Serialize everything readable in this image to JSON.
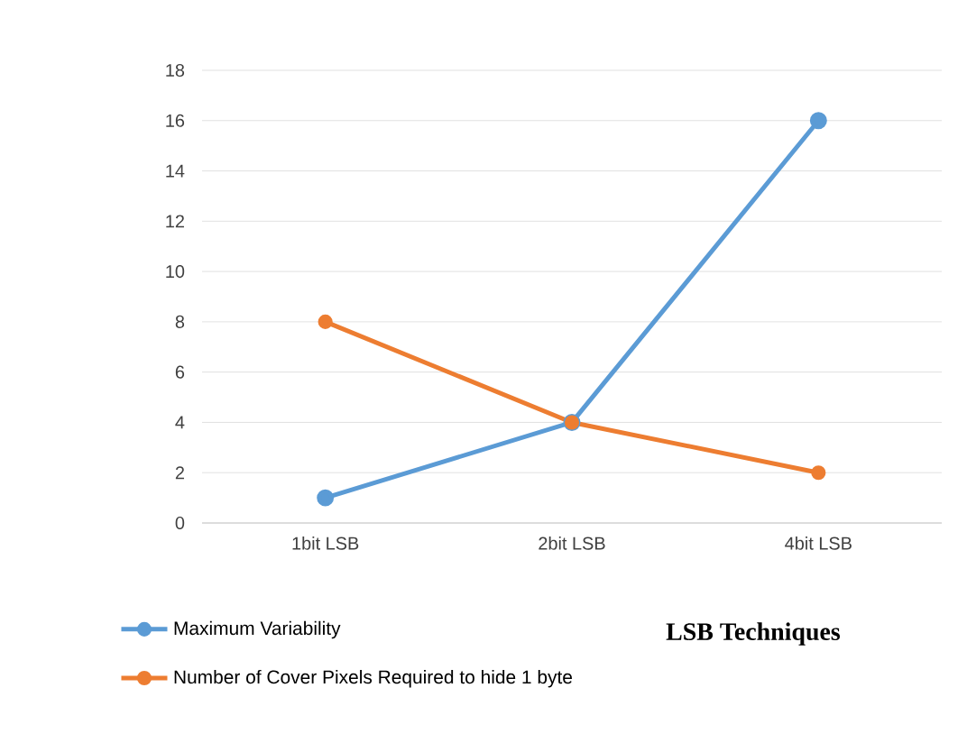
{
  "chart_data": {
    "type": "line",
    "xlabel": "LSB Techniques",
    "categories": [
      "1bit LSB",
      "2bit LSB",
      "4bit LSB"
    ],
    "series": [
      {
        "name": "Maximum Variability",
        "color": "#5b9bd5",
        "values": [
          1,
          4,
          16
        ]
      },
      {
        "name": "Number of Cover Pixels Required to hide 1 byte",
        "color": "#ed7d31",
        "values": [
          8,
          4,
          2
        ]
      }
    ],
    "ylim": [
      0,
      18
    ],
    "yticks": [
      0,
      2,
      4,
      6,
      8,
      10,
      12,
      14,
      16,
      18
    ],
    "grid": "y",
    "legend": "bottom",
    "marker": "circle",
    "line_style": "solid"
  }
}
